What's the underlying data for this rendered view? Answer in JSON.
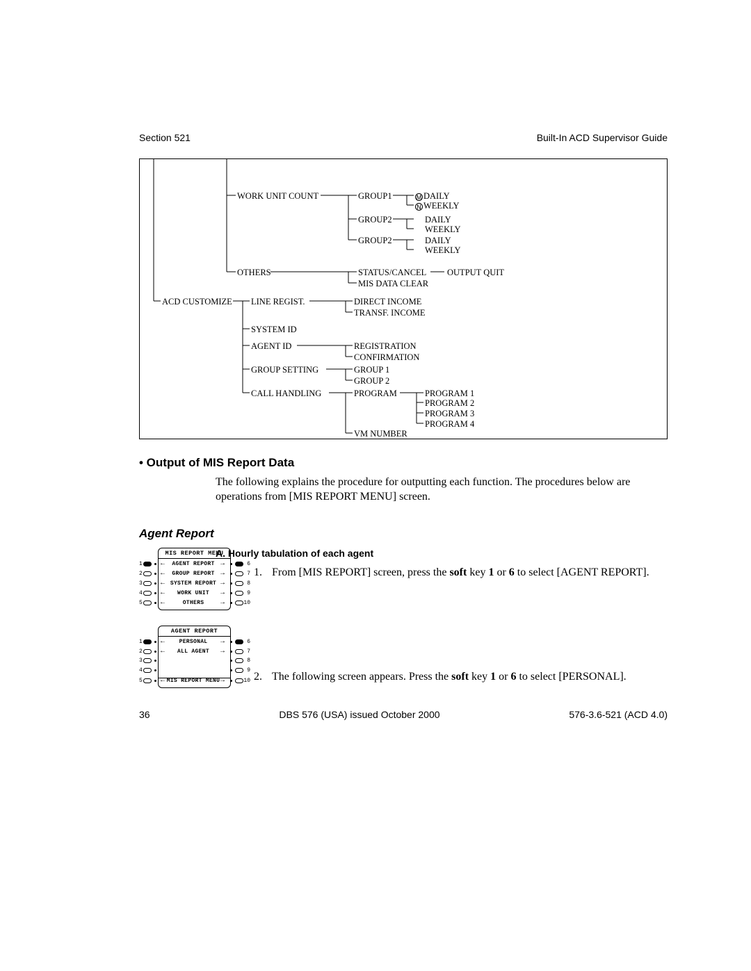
{
  "header": {
    "left": "Section 521",
    "right": "Built-In ACD Supervisor Guide"
  },
  "tree": {
    "nodes": {
      "work_unit_count": "WORK UNIT COUNT",
      "group1": "GROUP1",
      "group2a": "GROUP2",
      "group2b": "GROUP2",
      "daily": "DAILY",
      "weekly": "WEEKLY",
      "others": "OTHERS",
      "status_cancel": "STATUS/CANCEL",
      "output_quit": "OUTPUT QUIT",
      "mis_data_clear": "MIS DATA CLEAR",
      "acd_customize": "ACD CUSTOMIZE",
      "line_regist": "LINE REGIST.",
      "direct_income": "DIRECT INCOME",
      "transf_income": "TRANSF. INCOME",
      "system_id": "SYSTEM ID",
      "agent_id": "AGENT ID",
      "registration": "REGISTRATION",
      "confirmation": "CONFIRMATION",
      "group_setting": "GROUP SETTING",
      "group_1": "GROUP 1",
      "group_2": "GROUP 2",
      "call_handling": "CALL HANDLING",
      "program": "PROGRAM",
      "program_1": "PROGRAM 1",
      "program_2": "PROGRAM 2",
      "program_3": "PROGRAM 3",
      "program_4": "PROGRAM 4",
      "vm_number": "VM NUMBER"
    },
    "circles": {
      "m": "M",
      "n": "N"
    }
  },
  "section": {
    "bullet_heading": "• Output of MIS Report Data",
    "intro": "The following explains the procedure for outputting each function. The procedures below are operations from [MIS REPORT MENU] screen.",
    "agent_report": "Agent Report",
    "subA": "A. Hourly tabulation of each agent",
    "step1_pre": "From [MIS REPORT] screen, press the ",
    "soft": "soft",
    "step1_mid": " key ",
    "b1": "1",
    "or": " or ",
    "b6": "6",
    "step1_post": " to select [AGENT REPORT].",
    "step2_pre": "The following screen appears. Press the ",
    "step2_post": " to select [PERSONAL]."
  },
  "screen1": {
    "title": "MIS REPORT MENU",
    "rows": [
      "AGENT REPORT",
      "GROUP REPORT",
      "SYSTEM REPORT",
      "WORK UNIT",
      "OTHERS"
    ]
  },
  "screen2": {
    "title": "AGENT REPORT",
    "rows": [
      "PERSONAL",
      "ALL AGENT",
      "",
      "",
      "MIS REPORT MENU"
    ]
  },
  "footer": {
    "page": "36",
    "center": "DBS 576 (USA) issued October 2000",
    "right": "576-3.6-521 (ACD 4.0)"
  },
  "colors": {
    "text": "#000000",
    "bg": "#ffffff",
    "line": "#000000"
  }
}
